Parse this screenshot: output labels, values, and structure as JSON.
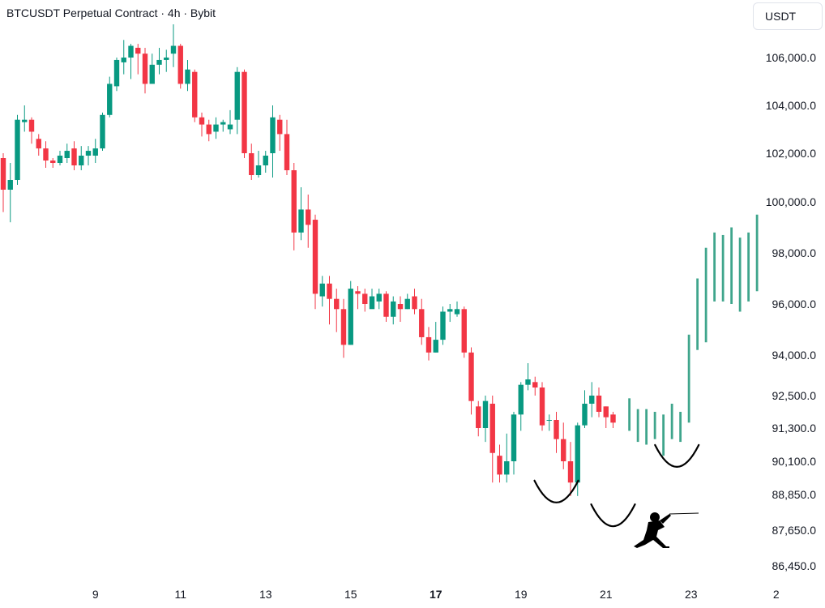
{
  "header": {
    "title": "BTCUSDT Perpetual Contract · 4h · Bybit",
    "currency": "USDT"
  },
  "colors": {
    "up": "#089981",
    "down": "#f23645",
    "projection": "#3fa58c",
    "axis_text": "#131722"
  },
  "icons": {
    "mascot": "fencer-icon"
  },
  "chart_data": {
    "type": "candlestick",
    "title": "BTCUSDT Perpetual Contract · 4h · Bybit",
    "y_axis": {
      "ticks": [
        "106,000.0",
        "104,000.0",
        "102,000.0",
        "100,000.0",
        "98,000.0",
        "96,000.0",
        "94,000.0",
        "92,500.0",
        "91,300.0",
        "90,100.0",
        "88,850.0",
        "87,650.0",
        "86,450.0"
      ],
      "tick_values": [
        106000,
        104000,
        102000,
        100000,
        98000,
        96000,
        94000,
        92500,
        91300,
        90100,
        88850,
        87650,
        86450
      ]
    },
    "x_axis": {
      "ticks": [
        "9",
        "11",
        "13",
        "15",
        "17",
        "19",
        "21",
        "23",
        "2"
      ],
      "tick_index": [
        13,
        25,
        37,
        49,
        61,
        73,
        85,
        97,
        109
      ],
      "bold": [
        "17"
      ]
    },
    "candles": [
      [
        101800,
        100500,
        102000,
        99600
      ],
      [
        100500,
        100900,
        101600,
        99200
      ],
      [
        100900,
        103400,
        103600,
        100700
      ],
      [
        103300,
        103400,
        104000,
        102900
      ],
      [
        103400,
        102900,
        103500,
        102400
      ],
      [
        102600,
        102200,
        102800,
        101900
      ],
      [
        102200,
        101700,
        102500,
        101400
      ],
      [
        101700,
        101600,
        101800,
        101400
      ],
      [
        101600,
        101900,
        102100,
        101500
      ],
      [
        101800,
        102100,
        102400,
        101600
      ],
      [
        102200,
        101500,
        102500,
        101300
      ],
      [
        101500,
        101900,
        102300,
        101300
      ],
      [
        101900,
        102100,
        102300,
        101500
      ],
      [
        101900,
        102200,
        102600,
        101600
      ],
      [
        102200,
        103600,
        103700,
        102100
      ],
      [
        103600,
        104900,
        105200,
        103500
      ],
      [
        104800,
        105900,
        106000,
        104600
      ],
      [
        105800,
        106000,
        106900,
        105300
      ],
      [
        106000,
        106600,
        106700,
        105100
      ],
      [
        106500,
        106200,
        106700,
        105300
      ],
      [
        106200,
        104900,
        106500,
        104500
      ],
      [
        104900,
        105700,
        106200,
        105200
      ],
      [
        105700,
        105900,
        106500,
        105300
      ],
      [
        105900,
        106000,
        106400,
        105400
      ],
      [
        106200,
        106600,
        107700,
        105600
      ],
      [
        106600,
        104900,
        106700,
        104700
      ],
      [
        104900,
        105500,
        105900,
        104600
      ],
      [
        105400,
        103500,
        105500,
        103300
      ],
      [
        103500,
        103200,
        103700,
        102700
      ],
      [
        103200,
        102800,
        103400,
        102500
      ],
      [
        102900,
        103200,
        103500,
        102600
      ],
      [
        103200,
        103300,
        103400,
        102900
      ],
      [
        103000,
        103200,
        103800,
        102800
      ],
      [
        103400,
        105400,
        105600,
        102800
      ],
      [
        105400,
        102000,
        105500,
        101800
      ],
      [
        102000,
        101100,
        102400,
        100900
      ],
      [
        101100,
        101500,
        102100,
        101000
      ],
      [
        101500,
        101900,
        102100,
        101200
      ],
      [
        102000,
        103500,
        104000,
        101000
      ],
      [
        103400,
        102800,
        103600,
        102100
      ],
      [
        102800,
        101300,
        103400,
        101100
      ],
      [
        101300,
        98800,
        101600,
        98100
      ],
      [
        98800,
        99700,
        100600,
        98500
      ],
      [
        99700,
        99100,
        100300,
        98200
      ],
      [
        99300,
        96400,
        99500,
        95800
      ],
      [
        96300,
        96800,
        97100,
        95900
      ],
      [
        96800,
        96200,
        97100,
        95200
      ],
      [
        96200,
        95800,
        96600,
        94900
      ],
      [
        95800,
        94400,
        96200,
        93900
      ],
      [
        94400,
        96600,
        96900,
        94400
      ],
      [
        96500,
        96400,
        96700,
        95800
      ],
      [
        96400,
        96000,
        96600,
        95700
      ],
      [
        95800,
        96300,
        96600,
        95900
      ],
      [
        96100,
        96400,
        96600,
        95800
      ],
      [
        96400,
        95500,
        96500,
        95300
      ],
      [
        95500,
        96100,
        96300,
        95200
      ],
      [
        96000,
        95800,
        96300,
        95300
      ],
      [
        95800,
        96200,
        96400,
        95800
      ],
      [
        96300,
        95800,
        96600,
        95600
      ],
      [
        95800,
        94700,
        96200,
        94400
      ],
      [
        94700,
        94100,
        95100,
        93800
      ],
      [
        94100,
        94600,
        95300,
        94100
      ],
      [
        94600,
        95700,
        95900,
        94400
      ],
      [
        95700,
        95800,
        96000,
        95300
      ],
      [
        95600,
        95800,
        96100,
        95500
      ],
      [
        95800,
        94100,
        95900,
        93900
      ],
      [
        94100,
        92300,
        94300,
        91800
      ],
      [
        92100,
        91300,
        92300,
        91000
      ],
      [
        91300,
        92300,
        92500,
        90800
      ],
      [
        92200,
        90400,
        92500,
        89300
      ],
      [
        90300,
        89600,
        90700,
        89300
      ],
      [
        89600,
        90100,
        91100,
        89300
      ],
      [
        90100,
        91800,
        91900,
        89600
      ],
      [
        91800,
        92900,
        93000,
        91200
      ],
      [
        92900,
        93100,
        93700,
        92700
      ],
      [
        93000,
        92800,
        93200,
        92500
      ],
      [
        92800,
        91400,
        93000,
        91200
      ],
      [
        91600,
        91600,
        91800,
        91200
      ],
      [
        91600,
        90900,
        91900,
        90400
      ],
      [
        90900,
        90100,
        91500,
        89800
      ],
      [
        90100,
        89300,
        90800,
        88800
      ],
      [
        89300,
        91400,
        91500,
        88800
      ],
      [
        91400,
        92200,
        92700,
        91300
      ],
      [
        92200,
        92500,
        93000,
        91700
      ],
      [
        92500,
        91900,
        92800,
        91700
      ],
      [
        92100,
        91700,
        92100,
        91300
      ],
      [
        91800,
        91500,
        91900,
        91300
      ]
    ],
    "projection": [
      [
        91200,
        92400
      ],
      [
        90800,
        92000
      ],
      [
        90700,
        92000
      ],
      [
        90900,
        91900
      ],
      [
        90300,
        91800
      ],
      [
        90900,
        92200
      ],
      [
        90800,
        91900
      ],
      [
        91500,
        94800
      ],
      [
        94200,
        97000
      ],
      [
        94500,
        98200
      ],
      [
        96100,
        98800
      ],
      [
        96100,
        98700
      ],
      [
        96000,
        99000
      ],
      [
        95700,
        98600
      ],
      [
        96100,
        98800
      ],
      [
        96500,
        99500
      ]
    ],
    "annotations": [
      {
        "type": "arc",
        "center_index": 78,
        "center_value": 88500,
        "label": ""
      },
      {
        "type": "arc",
        "center_index": 86,
        "center_value": 87700,
        "label": ""
      },
      {
        "type": "arc",
        "center_index": 95,
        "center_value": 89800,
        "label": ""
      }
    ]
  }
}
